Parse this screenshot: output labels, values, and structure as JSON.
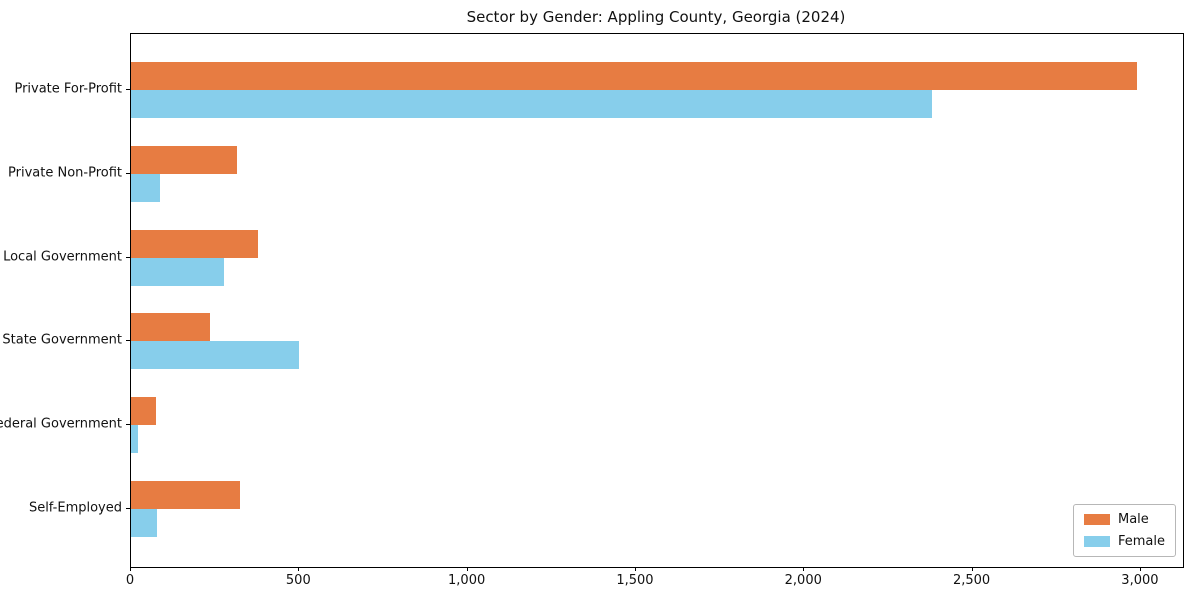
{
  "chart_data": {
    "type": "bar",
    "orientation": "horizontal",
    "title": "Sector by Gender: Appling County, Georgia (2024)",
    "categories": [
      "Private For-Profit",
      "Private Non-Profit",
      "Local Government",
      "State Government",
      "Federal Government",
      "Self-Employed"
    ],
    "series": [
      {
        "name": "Male",
        "color": "#e77c42",
        "values": [
          2988,
          316,
          377,
          236,
          74,
          324
        ]
      },
      {
        "name": "Female",
        "color": "#87ceeb",
        "values": [
          2378,
          86,
          277,
          498,
          22,
          76
        ]
      }
    ],
    "xlabel": "",
    "ylabel": "",
    "xlim": [
      0,
      3125
    ],
    "xticks": [
      0,
      500,
      1000,
      1500,
      2000,
      2500,
      3000
    ],
    "xtick_labels": [
      "0",
      "500",
      "1,000",
      "1,500",
      "2,000",
      "2,500",
      "3,000"
    ],
    "grid": "off",
    "legend_position": "lower right",
    "background_color": "#ffffff",
    "axis_color": "#000000"
  }
}
